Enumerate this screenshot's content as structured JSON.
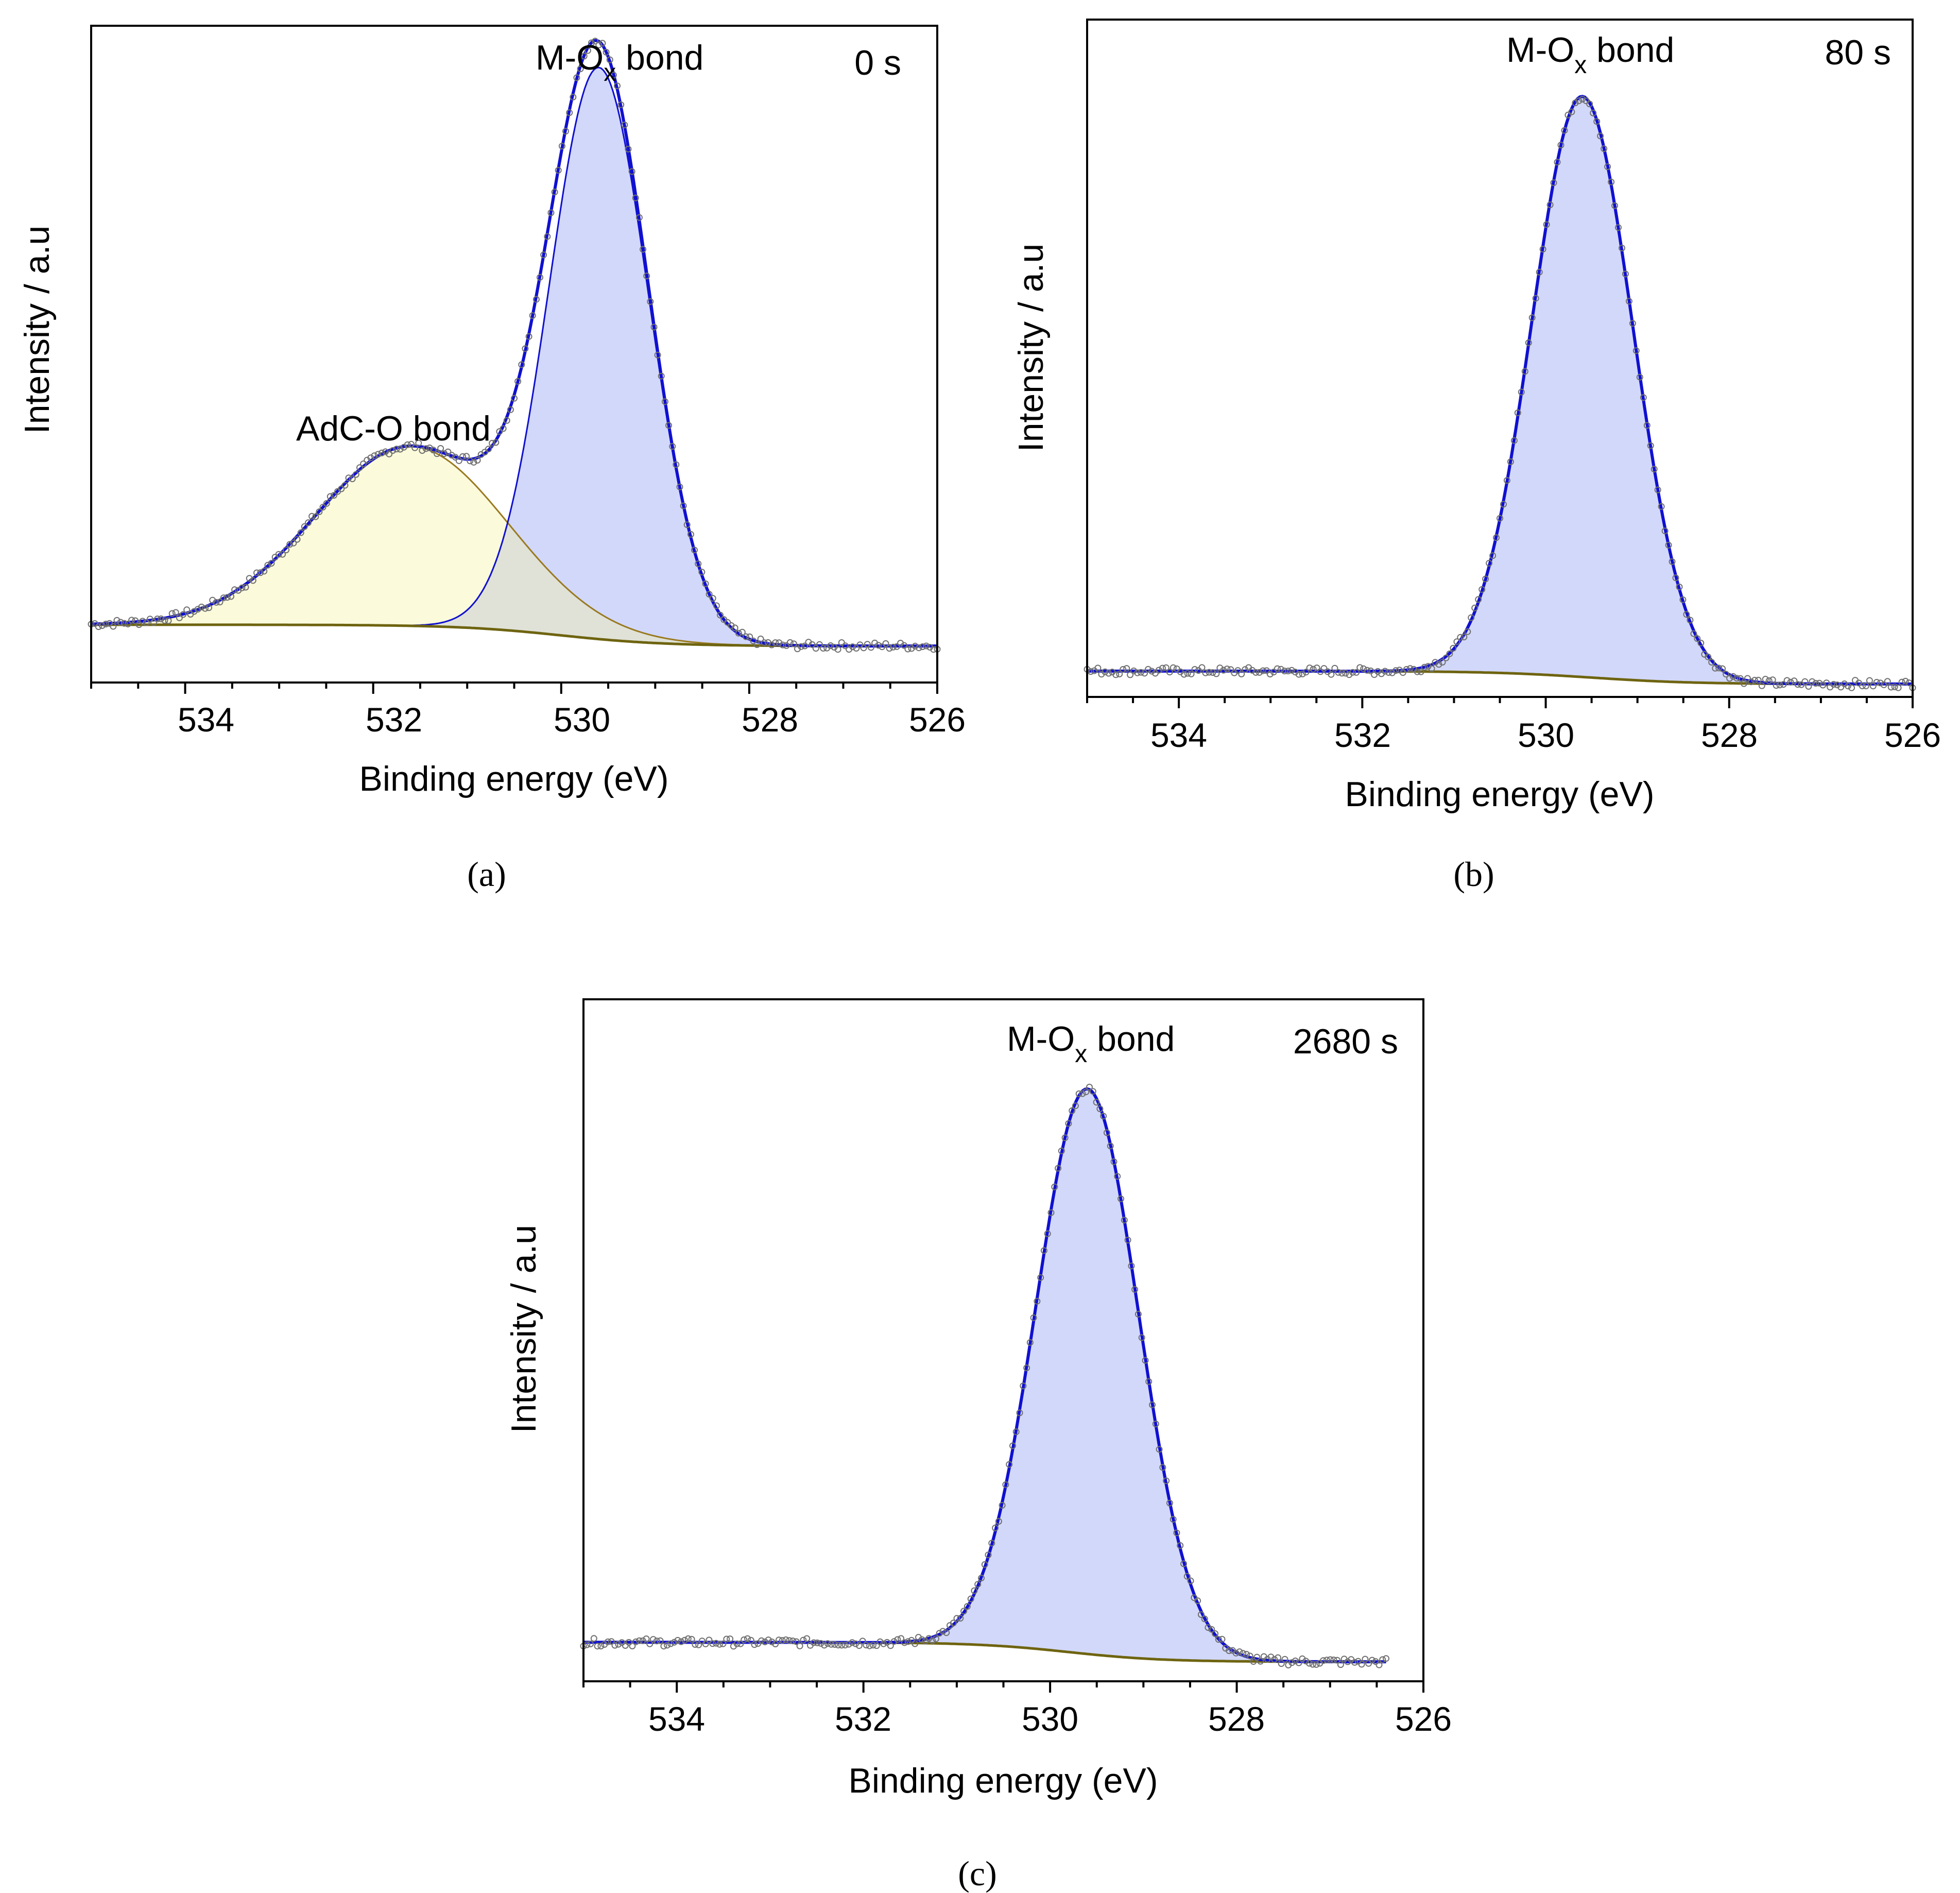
{
  "colors": {
    "fit": "#1010d0",
    "baseline": "#6e6410",
    "metal_oxide_fill": "#cdd4f8",
    "adc_fill": "#fbfadb",
    "overlap_fill": "#e0e2d8",
    "adc_line": "#9a7a20",
    "data_points": "#707070"
  },
  "chart_data": [
    {
      "id": "a",
      "panel_label": "(a)",
      "type": "line",
      "time_label": "0 s",
      "xlabel": "Binding energy (eV)",
      "ylabel": "Intensity / a.u",
      "xlim": [
        535,
        526
      ],
      "ylim": [
        0,
        1.08
      ],
      "x_ticks": [
        "534",
        "532",
        "530",
        "528",
        "526"
      ],
      "annotations": [
        {
          "main": "M-O",
          "sub": "x",
          "rest": " bond",
          "x": 530.6,
          "y": 1.06
        },
        {
          "main": "AdC-O bond",
          "sub": "",
          "rest": "",
          "x": 532.0,
          "y": 0.44
        }
      ],
      "baseline": {
        "high": 0.095,
        "low": 0.06,
        "center": 530.0,
        "width": 0.55
      },
      "components": [
        {
          "name": "AdC-O",
          "center": 531.6,
          "height": 0.295,
          "fwhm": 2.4,
          "fill": "adc_fill",
          "line": "adc_line"
        },
        {
          "name": "M-Ox",
          "center": 529.6,
          "height": 0.94,
          "fwhm": 1.25,
          "fill": "metal_oxide_fill",
          "line": "fit"
        }
      ],
      "peak_envelope_max": 0.995,
      "data_range": [
        535,
        526
      ]
    },
    {
      "id": "b",
      "panel_label": "(b)",
      "type": "line",
      "time_label": "80 s",
      "xlabel": "Binding energy (eV)",
      "ylabel": "Intensity / a.u",
      "xlim": [
        535,
        526
      ],
      "ylim": [
        0,
        1.05
      ],
      "x_ticks": [
        "534",
        "532",
        "530",
        "528",
        "526"
      ],
      "annotations": [
        {
          "main": "M-O",
          "sub": "x",
          "rest": " bond",
          "x": 530.4,
          "y": 1.02
        }
      ],
      "baseline": {
        "high": 0.04,
        "low": 0.02,
        "center": 529.5,
        "width": 0.55
      },
      "components": [
        {
          "name": "M-Ox",
          "center": 529.6,
          "height": 0.9,
          "fwhm": 1.3,
          "fill": "metal_oxide_fill",
          "line": "fit"
        }
      ],
      "data_range": [
        535,
        526
      ]
    },
    {
      "id": "c",
      "panel_label": "(c)",
      "type": "line",
      "time_label": "2680 s",
      "xlabel": "Binding energy (eV)",
      "ylabel": "Intensity / a.u",
      "xlim": [
        535,
        526
      ],
      "ylim": [
        0,
        1.05
      ],
      "x_ticks": [
        "534",
        "532",
        "530",
        "528",
        "526"
      ],
      "annotations": [
        {
          "main": "M-O",
          "sub": "x",
          "rest": " bond",
          "x": 530.4,
          "y": 1.0
        }
      ],
      "baseline": {
        "high": 0.06,
        "low": 0.03,
        "center": 529.8,
        "width": 0.5
      },
      "components": [
        {
          "name": "M-Ox",
          "center": 529.6,
          "height": 0.87,
          "fwhm": 1.3,
          "fill": "metal_oxide_fill",
          "line": "fit"
        }
      ],
      "data_range": [
        535,
        526.4
      ]
    }
  ]
}
